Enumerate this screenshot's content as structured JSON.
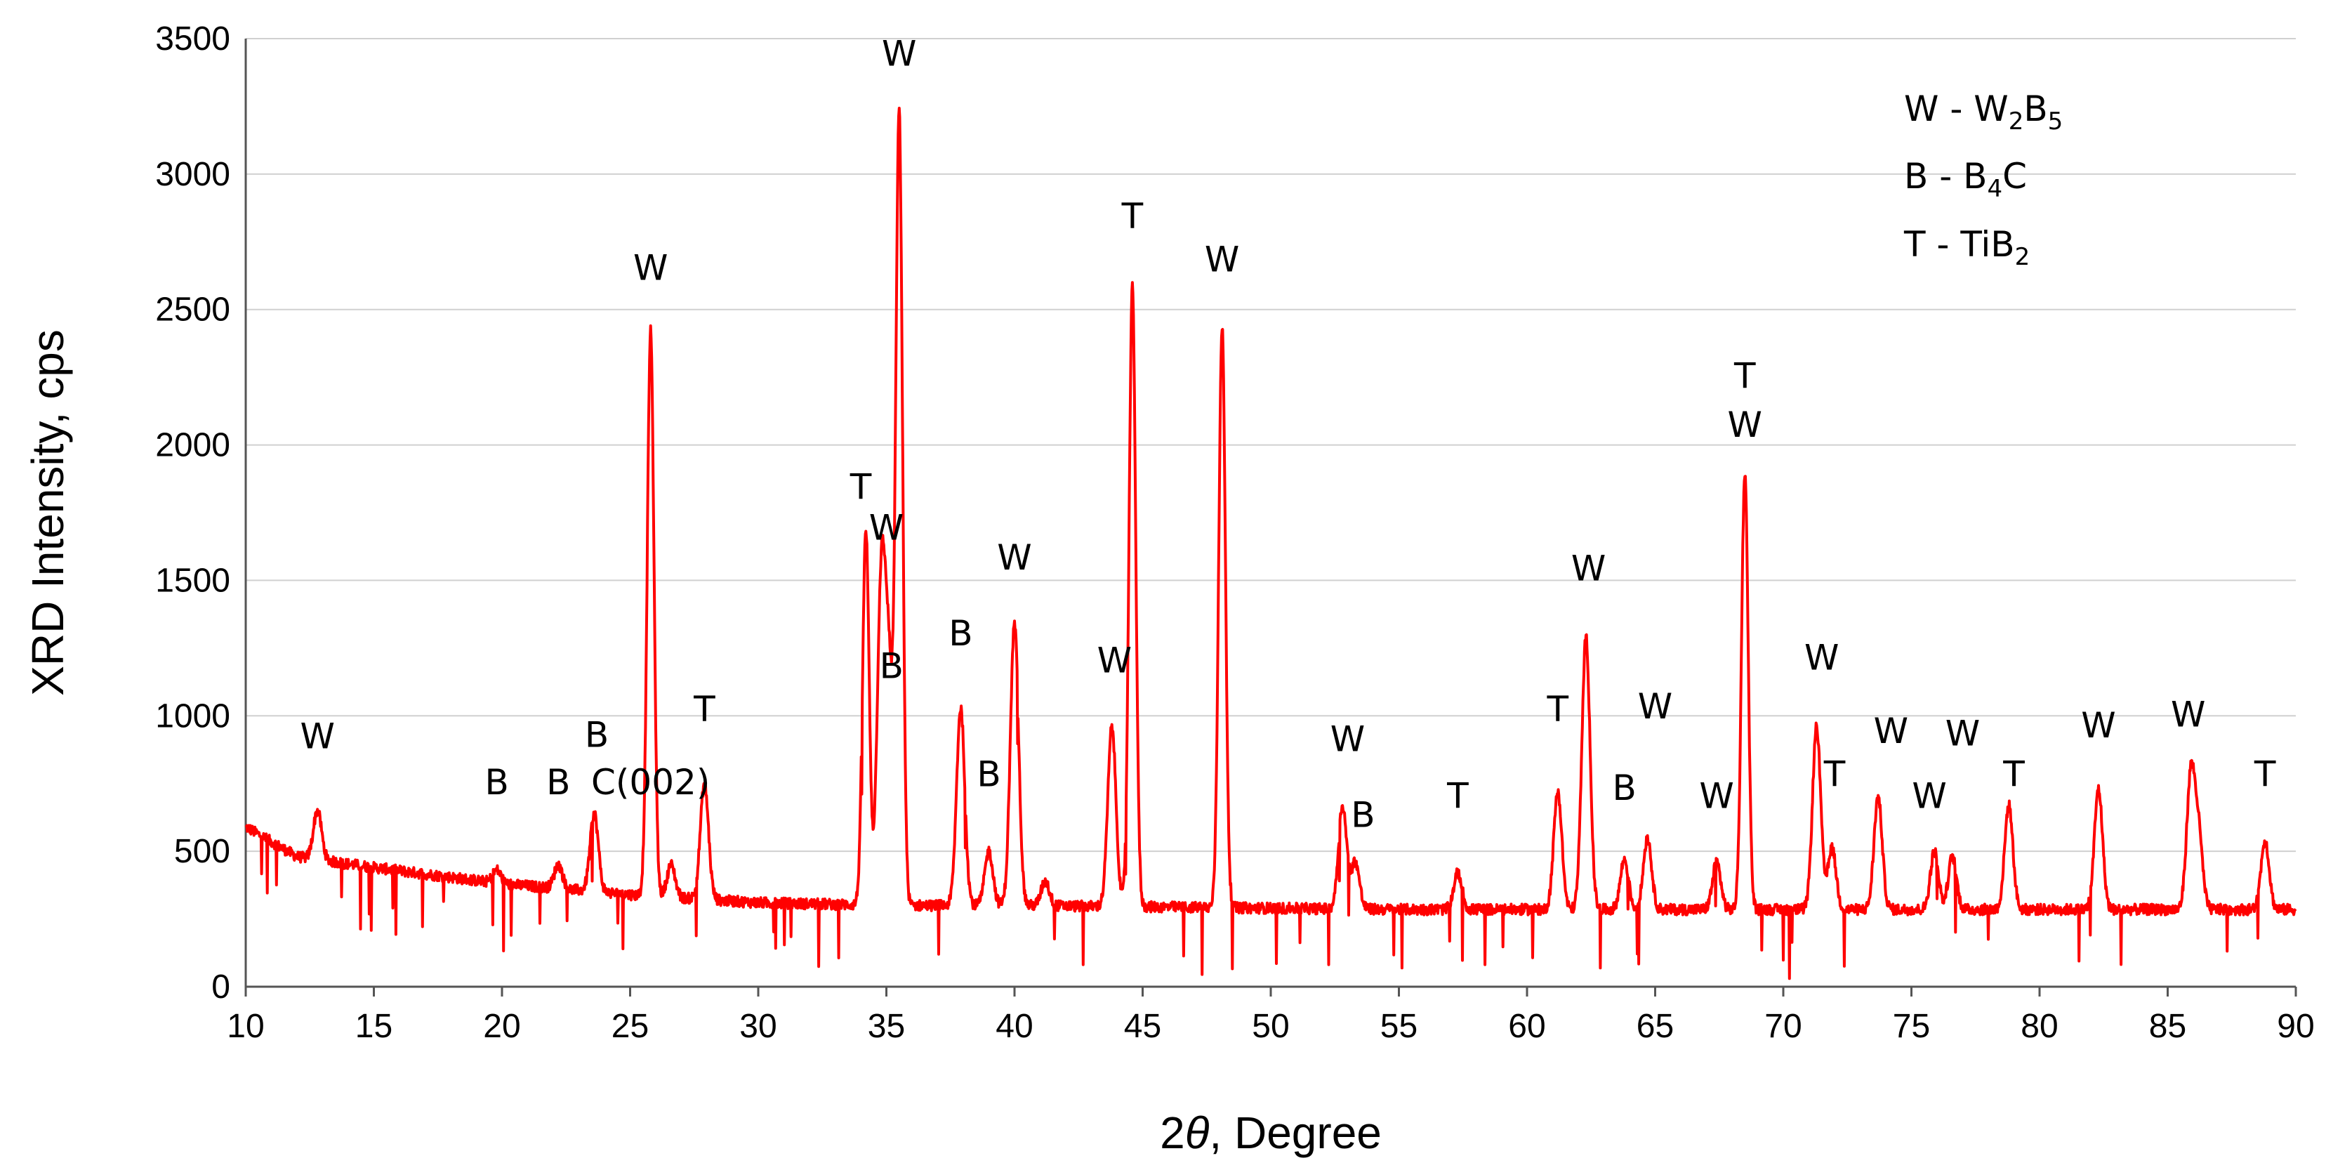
{
  "chart_data": {
    "type": "line",
    "xlabel_prefix": "2",
    "xlabel_theta": "θ",
    "xlabel_suffix": ", Degree",
    "ylabel": "XRD Intensity, cps",
    "xlim": [
      10,
      90
    ],
    "ylim": [
      0,
      3500
    ],
    "x_ticks": [
      "10",
      "15",
      "20",
      "25",
      "30",
      "35",
      "40",
      "45",
      "50",
      "55",
      "60",
      "65",
      "70",
      "75",
      "80",
      "85",
      "90"
    ],
    "y_ticks": [
      "0",
      "500",
      "1000",
      "1500",
      "2000",
      "2500",
      "3000",
      "3500"
    ],
    "series_color": "#ff0000",
    "baseline": [
      [
        10,
        590
      ],
      [
        12,
        480
      ],
      [
        15,
        440
      ],
      [
        20,
        380
      ],
      [
        25,
        340
      ],
      [
        30,
        310
      ],
      [
        35,
        300
      ],
      [
        40,
        300
      ],
      [
        45,
        295
      ],
      [
        50,
        290
      ],
      [
        55,
        285
      ],
      [
        60,
        285
      ],
      [
        65,
        285
      ],
      [
        70,
        285
      ],
      [
        75,
        285
      ],
      [
        80,
        285
      ],
      [
        85,
        285
      ],
      [
        90,
        285
      ]
    ],
    "peaks": [
      {
        "x": 12.8,
        "y": 650
      },
      {
        "x": 19.8,
        "y": 430
      },
      {
        "x": 22.2,
        "y": 450
      },
      {
        "x": 23.6,
        "y": 640
      },
      {
        "x": 25.8,
        "y": 2420
      },
      {
        "x": 26.6,
        "y": 450
      },
      {
        "x": 27.9,
        "y": 750
      },
      {
        "x": 34.2,
        "y": 1680
      },
      {
        "x": 34.8,
        "y": 1470
      },
      {
        "x": 35.1,
        "y": 1100
      },
      {
        "x": 35.5,
        "y": 3200
      },
      {
        "x": 37.9,
        "y": 1030
      },
      {
        "x": 39.0,
        "y": 500
      },
      {
        "x": 40.0,
        "y": 1340
      },
      {
        "x": 41.2,
        "y": 390
      },
      {
        "x": 43.8,
        "y": 960
      },
      {
        "x": 44.6,
        "y": 2580
      },
      {
        "x": 48.1,
        "y": 2440
      },
      {
        "x": 52.8,
        "y": 670
      },
      {
        "x": 53.3,
        "y": 460
      },
      {
        "x": 57.3,
        "y": 420
      },
      {
        "x": 61.2,
        "y": 720
      },
      {
        "x": 62.3,
        "y": 1290
      },
      {
        "x": 63.8,
        "y": 470
      },
      {
        "x": 64.7,
        "y": 550
      },
      {
        "x": 67.4,
        "y": 460
      },
      {
        "x": 68.5,
        "y": 1900
      },
      {
        "x": 71.3,
        "y": 960
      },
      {
        "x": 71.9,
        "y": 510
      },
      {
        "x": 73.7,
        "y": 700
      },
      {
        "x": 75.9,
        "y": 500
      },
      {
        "x": 76.6,
        "y": 480
      },
      {
        "x": 78.8,
        "y": 670
      },
      {
        "x": 82.3,
        "y": 730
      },
      {
        "x": 85.9,
        "y": 770
      },
      {
        "x": 86.2,
        "y": 560
      },
      {
        "x": 88.8,
        "y": 540
      }
    ],
    "peak_labels": [
      {
        "text": "W",
        "x": 12.8,
        "y": 880
      },
      {
        "text": "B",
        "x": 19.8,
        "y": 710
      },
      {
        "text": "B",
        "x": 22.2,
        "y": 710
      },
      {
        "text": "B",
        "x": 23.7,
        "y": 885
      },
      {
        "text": "C(002)",
        "x": 25.8,
        "y": 710
      },
      {
        "text": "W",
        "x": 25.8,
        "y": 2610
      },
      {
        "text": "T",
        "x": 27.9,
        "y": 980
      },
      {
        "text": "T",
        "x": 34.0,
        "y": 1800
      },
      {
        "text": "W",
        "x": 35.0,
        "y": 1650
      },
      {
        "text": "B",
        "x": 35.2,
        "y": 1140
      },
      {
        "text": "W",
        "x": 35.5,
        "y": 3400
      },
      {
        "text": "B",
        "x": 37.9,
        "y": 1260
      },
      {
        "text": "B",
        "x": 39.0,
        "y": 740
      },
      {
        "text": "W",
        "x": 40.0,
        "y": 1540
      },
      {
        "text": "W",
        "x": 43.9,
        "y": 1160
      },
      {
        "text": "T",
        "x": 44.6,
        "y": 2800
      },
      {
        "text": "W",
        "x": 48.1,
        "y": 2640
      },
      {
        "text": "W",
        "x": 53.0,
        "y": 870
      },
      {
        "text": "B",
        "x": 53.6,
        "y": 590
      },
      {
        "text": "T",
        "x": 57.3,
        "y": 660
      },
      {
        "text": "T",
        "x": 61.2,
        "y": 980
      },
      {
        "text": "W",
        "x": 62.4,
        "y": 1500
      },
      {
        "text": "B",
        "x": 63.8,
        "y": 690
      },
      {
        "text": "W",
        "x": 65.0,
        "y": 990
      },
      {
        "text": "W",
        "x": 67.4,
        "y": 660
      },
      {
        "text": "T",
        "x": 68.5,
        "y": 2210
      },
      {
        "text": "W",
        "x": 68.5,
        "y": 2030
      },
      {
        "text": "W",
        "x": 71.5,
        "y": 1170
      },
      {
        "text": "T",
        "x": 72.0,
        "y": 740
      },
      {
        "text": "W",
        "x": 74.2,
        "y": 900
      },
      {
        "text": "W",
        "x": 75.7,
        "y": 660
      },
      {
        "text": "W",
        "x": 77.0,
        "y": 890
      },
      {
        "text": "T",
        "x": 79.0,
        "y": 740
      },
      {
        "text": "W",
        "x": 82.3,
        "y": 920
      },
      {
        "text": "W",
        "x": 85.8,
        "y": 960
      },
      {
        "text": "T",
        "x": 88.8,
        "y": 740
      }
    ],
    "legend": [
      {
        "prefix": "W - W",
        "sub1": "2",
        "mid": "B",
        "sub2": "5",
        "suffix": ""
      },
      {
        "prefix": "B - B",
        "sub1": "4",
        "mid": "C",
        "sub2": "",
        "suffix": ""
      },
      {
        "prefix": "T - TiB",
        "sub1": "2",
        "mid": "",
        "sub2": "",
        "suffix": ""
      }
    ]
  }
}
